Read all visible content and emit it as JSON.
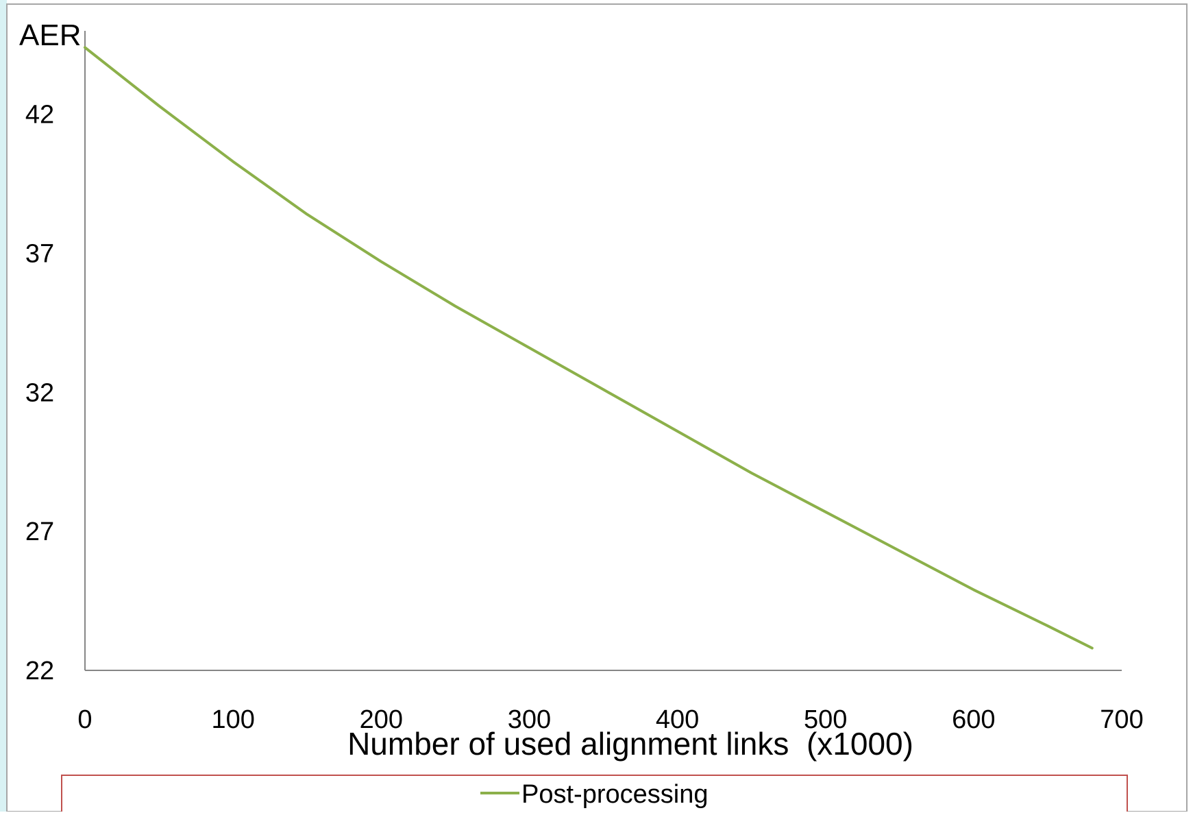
{
  "chart_data": {
    "type": "line",
    "title": "",
    "xlabel": "Number of used alignment links  (x1000)",
    "ylabel": "AER",
    "xlim": [
      0,
      700
    ],
    "ylim": [
      22,
      45
    ],
    "x_ticks": [
      0,
      100,
      200,
      300,
      400,
      500,
      600,
      700
    ],
    "y_ticks": [
      22,
      27,
      32,
      37,
      42
    ],
    "grid": false,
    "legend_position": "bottom",
    "series": [
      {
        "name": "Post-processing",
        "color": "#8cb04a",
        "x": [
          0,
          50,
          100,
          150,
          200,
          250,
          300,
          350,
          400,
          450,
          500,
          550,
          600,
          650,
          680
        ],
        "y": [
          44.4,
          42.3,
          40.3,
          38.4,
          36.7,
          35.1,
          33.6,
          32.1,
          30.6,
          29.1,
          27.7,
          26.3,
          24.9,
          23.6,
          22.8
        ]
      }
    ]
  }
}
